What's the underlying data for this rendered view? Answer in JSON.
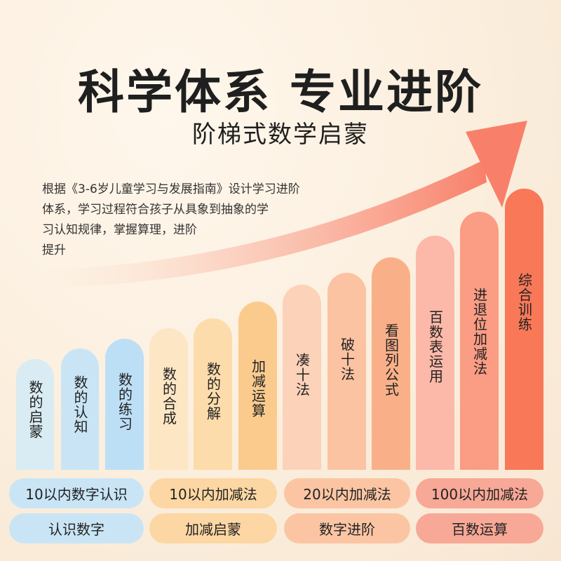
{
  "title": "科学体系 专业进阶",
  "subtitle": "阶梯式数学启蒙",
  "description": {
    "line1": "根据《3-6岁儿童学习与发展指南》设计学习进阶",
    "line2": "体系，学习过程符合孩子从具象到抽象的学",
    "line3": "习认知规律，掌握算理，进阶",
    "line4": "提升"
  },
  "steps": [
    {
      "label": "数的启蒙",
      "color": "#d9ecf3"
    },
    {
      "label": "数的认知",
      "color": "#c9e5f5"
    },
    {
      "label": "数的练习",
      "color": "#bcdff5"
    },
    {
      "label": "数的合成",
      "color": "#fde6c4"
    },
    {
      "label": "数的分解",
      "color": "#fcdcaa"
    },
    {
      "label": "加减运算",
      "color": "#fbcb8e"
    },
    {
      "label": "凑十法",
      "color": "#fcd2b8"
    },
    {
      "label": "破十法",
      "color": "#fbc3a1"
    },
    {
      "label": "看图列公式",
      "color": "#f9b088"
    },
    {
      "label": "百数表运用",
      "color": "#fcb8a8"
    },
    {
      "label": "进退位加减法",
      "color": "#fb9c84"
    },
    {
      "label": "综合训练",
      "color": "#f87858"
    }
  ],
  "levels": [
    {
      "label": "10以内数字认识",
      "color": "#c9e5f5"
    },
    {
      "label": "10以内加减法",
      "color": "#fcd7a3"
    },
    {
      "label": "20以内加减法",
      "color": "#fbc5a4"
    },
    {
      "label": "100以内加减法",
      "color": "#f8a896"
    }
  ],
  "stages": [
    {
      "label": "认识数字",
      "color": "#c9e5f5"
    },
    {
      "label": "加减启蒙",
      "color": "#fcd7a3"
    },
    {
      "label": "数字进阶",
      "color": "#fbc5a4"
    },
    {
      "label": "百数运算",
      "color": "#f8a896"
    }
  ]
}
